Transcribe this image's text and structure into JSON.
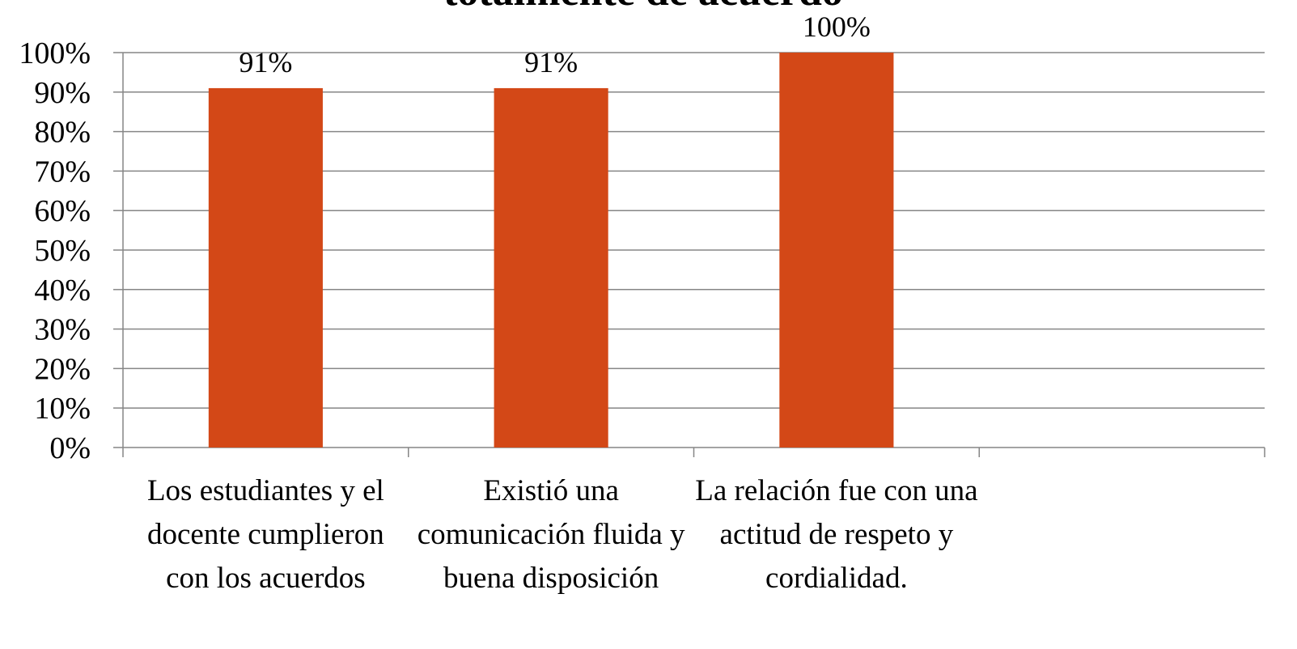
{
  "chart_data": {
    "type": "bar",
    "title": "totalmente de acuerdo",
    "categories": [
      "Los estudiantes y el docente cumplieron con los acuerdos",
      "Existió una comunicación  fluida y buena disposición",
      "La relación fue con una actitud de respeto y cordialidad.",
      null
    ],
    "values": [
      91,
      91,
      100,
      null
    ],
    "value_labels": [
      "91%",
      "91%",
      "100%",
      null
    ],
    "color": "#d34817",
    "ylim": [
      0,
      100
    ],
    "yticks": [
      {
        "value": 0,
        "label": "0%"
      },
      {
        "value": 10,
        "label": "10%"
      },
      {
        "value": 20,
        "label": "20%"
      },
      {
        "value": 30,
        "label": "30%"
      },
      {
        "value": 40,
        "label": "40%"
      },
      {
        "value": 50,
        "label": "50%"
      },
      {
        "value": 60,
        "label": "60%"
      },
      {
        "value": 70,
        "label": "70%"
      },
      {
        "value": 80,
        "label": "80%"
      },
      {
        "value": 90,
        "label": "90%"
      },
      {
        "value": 100,
        "label": "100%"
      }
    ],
    "grid": true
  }
}
